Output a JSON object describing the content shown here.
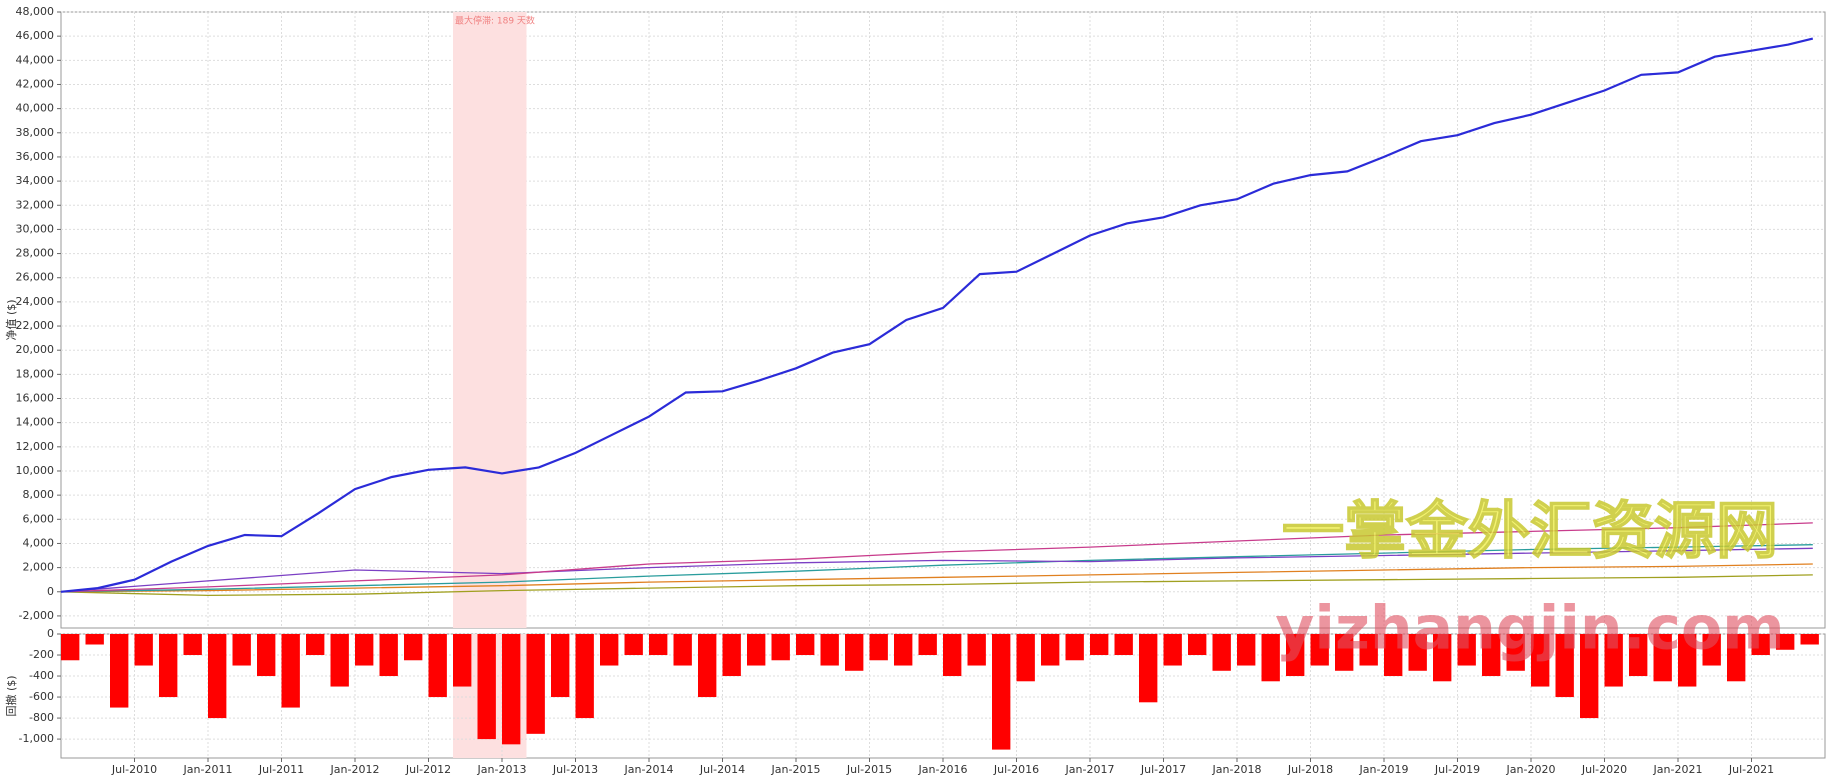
{
  "chart_data": [
    {
      "type": "line",
      "ylabel": "净值 ($)",
      "grid": true,
      "xlim": [
        "2010-01",
        "2022-01"
      ],
      "ylim": [
        -3000,
        48000
      ],
      "yticks": [
        {
          "value": -2000,
          "label": "-2,000"
        },
        0,
        {
          "value": 2000,
          "label": "2,000"
        },
        {
          "value": 4000,
          "label": "4,000"
        },
        {
          "value": 6000,
          "label": "6,000"
        },
        {
          "value": 8000,
          "label": "8,000"
        },
        {
          "value": 10000,
          "label": "10,000"
        },
        {
          "value": 12000,
          "label": "12,000"
        },
        {
          "value": 14000,
          "label": "14,000"
        },
        {
          "value": 16000,
          "label": "16,000"
        },
        {
          "value": 18000,
          "label": "18,000"
        },
        {
          "value": 20000,
          "label": "20,000"
        },
        {
          "value": 22000,
          "label": "22,000"
        },
        {
          "value": 24000,
          "label": "24,000"
        },
        {
          "value": 26000,
          "label": "26,000"
        },
        {
          "value": 28000,
          "label": "28,000"
        },
        {
          "value": 30000,
          "label": "30,000"
        },
        {
          "value": 32000,
          "label": "32,000"
        },
        {
          "value": 34000,
          "label": "34,000"
        },
        {
          "value": 36000,
          "label": "36,000"
        },
        {
          "value": 38000,
          "label": "38,000"
        },
        {
          "value": 40000,
          "label": "40,000"
        },
        {
          "value": 42000,
          "label": "42,000"
        },
        {
          "value": 44000,
          "label": "44,000"
        },
        {
          "value": 46000,
          "label": "46,000"
        },
        {
          "value": 48000,
          "label": "48,000"
        }
      ],
      "annotation": {
        "text": "最大停滞: 189 天数",
        "start": "2012-09",
        "end": "2013-03",
        "color": "#fde0e0"
      },
      "watermark": [
        "一掌金外汇资源网",
        "yizhangjin.com"
      ],
      "series": [
        {
          "color": "#2b2bd8",
          "x": [
            "2010-01",
            "2010-04",
            "2010-07",
            "2010-10",
            "2011-01",
            "2011-04",
            "2011-07",
            "2011-10",
            "2012-01",
            "2012-04",
            "2012-07",
            "2012-10",
            "2013-01",
            "2013-04",
            "2013-07",
            "2013-10",
            "2014-01",
            "2014-04",
            "2014-07",
            "2014-10",
            "2015-01",
            "2015-04",
            "2015-07",
            "2015-10",
            "2016-01",
            "2016-04",
            "2016-07",
            "2016-10",
            "2017-01",
            "2017-04",
            "2017-07",
            "2017-10",
            "2018-01",
            "2018-04",
            "2018-07",
            "2018-10",
            "2019-01",
            "2019-04",
            "2019-07",
            "2019-10",
            "2020-01",
            "2020-04",
            "2020-07",
            "2020-10",
            "2021-01",
            "2021-04",
            "2021-07",
            "2021-10",
            "2021-12"
          ],
          "values": [
            0,
            300,
            1000,
            2500,
            3800,
            4700,
            4600,
            6500,
            8500,
            9500,
            10100,
            10300,
            9800,
            10300,
            11500,
            13000,
            14500,
            16500,
            16600,
            17500,
            18500,
            19800,
            20500,
            22500,
            23500,
            26300,
            26500,
            28000,
            29500,
            30500,
            31000,
            32000,
            32500,
            33800,
            34500,
            34800,
            36000,
            37300,
            37800,
            38800,
            39500,
            40500,
            41500,
            42800,
            43000,
            44300,
            44800,
            45300,
            45800
          ]
        },
        {
          "color": "#c83c8c",
          "x": [
            "2010-01",
            "2011-01",
            "2012-01",
            "2013-01",
            "2014-01",
            "2015-01",
            "2016-01",
            "2017-01",
            "2018-01",
            "2019-01",
            "2020-01",
            "2021-01",
            "2021-12"
          ],
          "values": [
            0,
            400,
            900,
            1400,
            2300,
            2700,
            3300,
            3700,
            4200,
            4700,
            5000,
            5300,
            5700
          ]
        },
        {
          "color": "#7b3fc4",
          "x": [
            "2010-01",
            "2011-01",
            "2012-01",
            "2013-01",
            "2014-01",
            "2015-01",
            "2016-01",
            "2017-01",
            "2018-01",
            "2019-01",
            "2020-01",
            "2021-01",
            "2021-12"
          ],
          "values": [
            0,
            900,
            1800,
            1500,
            2000,
            2400,
            2600,
            2500,
            2800,
            3000,
            3200,
            3400,
            3600
          ]
        },
        {
          "color": "#2a9d9d",
          "x": [
            "2010-01",
            "2011-01",
            "2012-01",
            "2013-01",
            "2014-01",
            "2015-01",
            "2016-01",
            "2017-01",
            "2018-01",
            "2019-01",
            "2020-01",
            "2021-01",
            "2021-12"
          ],
          "values": [
            0,
            200,
            500,
            800,
            1300,
            1700,
            2200,
            2600,
            2900,
            3200,
            3500,
            3700,
            3900
          ]
        },
        {
          "color": "#e08020",
          "x": [
            "2010-01",
            "2011-01",
            "2012-01",
            "2013-01",
            "2014-01",
            "2015-01",
            "2016-01",
            "2017-01",
            "2018-01",
            "2019-01",
            "2020-01",
            "2021-01",
            "2021-12"
          ],
          "values": [
            0,
            100,
            300,
            500,
            800,
            1000,
            1200,
            1400,
            1600,
            1800,
            2000,
            2100,
            2300
          ]
        },
        {
          "color": "#a0a020",
          "x": [
            "2010-01",
            "2011-01",
            "2012-01",
            "2013-01",
            "2014-01",
            "2015-01",
            "2016-01",
            "2017-01",
            "2018-01",
            "2019-01",
            "2020-01",
            "2021-01",
            "2021-12"
          ],
          "values": [
            0,
            -300,
            -200,
            100,
            300,
            500,
            600,
            800,
            900,
            1000,
            1100,
            1200,
            1400
          ]
        }
      ]
    },
    {
      "type": "bar",
      "ylabel": "回撤 ($)",
      "color": "#ff0000",
      "grid": true,
      "xlim": [
        "2010-01",
        "2022-01"
      ],
      "ylim": [
        -1180,
        0
      ],
      "yticks": [
        0,
        -200,
        -400,
        -600,
        -800,
        {
          "value": -1000,
          "label": "-1,000"
        }
      ],
      "xticks": [
        {
          "value": "2010-07",
          "label": "Jul-2010"
        },
        {
          "value": "2011-01",
          "label": "Jan-2011"
        },
        {
          "value": "2011-07",
          "label": "Jul-2011"
        },
        {
          "value": "2012-01",
          "label": "Jan-2012"
        },
        {
          "value": "2012-07",
          "label": "Jul-2012"
        },
        {
          "value": "2013-01",
          "label": "Jan-2013"
        },
        {
          "value": "2013-07",
          "label": "Jul-2013"
        },
        {
          "value": "2014-01",
          "label": "Jan-2014"
        },
        {
          "value": "2014-07",
          "label": "Jul-2014"
        },
        {
          "value": "2015-01",
          "label": "Jan-2015"
        },
        {
          "value": "2015-07",
          "label": "Jul-2015"
        },
        {
          "value": "2016-01",
          "label": "Jan-2016"
        },
        {
          "value": "2016-07",
          "label": "Jul-2016"
        },
        {
          "value": "2017-01",
          "label": "Jan-2017"
        },
        {
          "value": "2017-07",
          "label": "Jul-2017"
        },
        {
          "value": "2018-01",
          "label": "Jan-2018"
        },
        {
          "value": "2018-07",
          "label": "Jul-2018"
        },
        {
          "value": "2019-01",
          "label": "Jan-2019"
        },
        {
          "value": "2019-07",
          "label": "Jul-2019"
        },
        {
          "value": "2020-01",
          "label": "Jan-2020"
        },
        {
          "value": "2020-07",
          "label": "Jul-2020"
        },
        {
          "value": "2021-01",
          "label": "Jan-2021"
        },
        {
          "value": "2021-07",
          "label": "Jul-2021"
        }
      ],
      "x": [
        "2010-01",
        "2010-03",
        "2010-05",
        "2010-07",
        "2010-09",
        "2010-11",
        "2011-01",
        "2011-03",
        "2011-05",
        "2011-07",
        "2011-09",
        "2011-11",
        "2012-01",
        "2012-03",
        "2012-05",
        "2012-07",
        "2012-09",
        "2012-11",
        "2013-01",
        "2013-03",
        "2013-05",
        "2013-07",
        "2013-09",
        "2013-11",
        "2014-01",
        "2014-03",
        "2014-05",
        "2014-07",
        "2014-09",
        "2014-11",
        "2015-01",
        "2015-03",
        "2015-05",
        "2015-07",
        "2015-09",
        "2015-11",
        "2016-01",
        "2016-03",
        "2016-05",
        "2016-07",
        "2016-09",
        "2016-11",
        "2017-01",
        "2017-03",
        "2017-05",
        "2017-07",
        "2017-09",
        "2017-11",
        "2018-01",
        "2018-03",
        "2018-05",
        "2018-07",
        "2018-09",
        "2018-11",
        "2019-01",
        "2019-03",
        "2019-05",
        "2019-07",
        "2019-09",
        "2019-11",
        "2020-01",
        "2020-03",
        "2020-05",
        "2020-07",
        "2020-09",
        "2020-11",
        "2021-01",
        "2021-03",
        "2021-05",
        "2021-07",
        "2021-09",
        "2021-11"
      ],
      "values": [
        -250,
        -100,
        -700,
        -300,
        -600,
        -200,
        -800,
        -300,
        -400,
        -700,
        -200,
        -500,
        -300,
        -400,
        -250,
        -600,
        -500,
        -1000,
        -1050,
        -950,
        -600,
        -800,
        -300,
        -200,
        -200,
        -300,
        -600,
        -400,
        -300,
        -250,
        -200,
        -300,
        -350,
        -250,
        -300,
        -200,
        -400,
        -300,
        -1100,
        -450,
        -300,
        -250,
        -200,
        -200,
        -650,
        -300,
        -200,
        -350,
        -300,
        -450,
        -400,
        -300,
        -350,
        -300,
        -400,
        -350,
        -450,
        -300,
        -400,
        -350,
        -500,
        -600,
        -800,
        -500,
        -400,
        -450,
        -500,
        -300,
        -450,
        -200,
        -150,
        -100
      ]
    }
  ]
}
